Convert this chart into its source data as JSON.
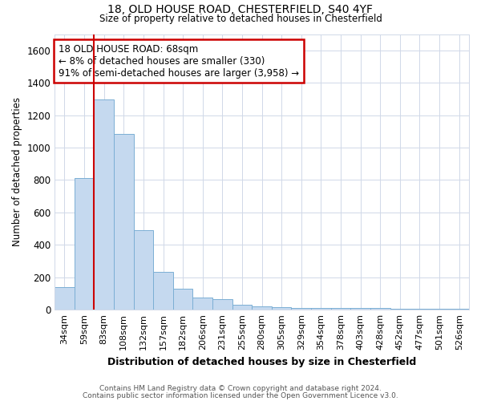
{
  "title1": "18, OLD HOUSE ROAD, CHESTERFIELD, S40 4YF",
  "title2": "Size of property relative to detached houses in Chesterfield",
  "xlabel": "Distribution of detached houses by size in Chesterfield",
  "ylabel": "Number of detached properties",
  "bin_labels": [
    "34sqm",
    "59sqm",
    "83sqm",
    "108sqm",
    "132sqm",
    "157sqm",
    "182sqm",
    "206sqm",
    "231sqm",
    "255sqm",
    "280sqm",
    "305sqm",
    "329sqm",
    "354sqm",
    "378sqm",
    "403sqm",
    "428sqm",
    "452sqm",
    "477sqm",
    "501sqm",
    "526sqm"
  ],
  "bar_heights": [
    140,
    810,
    1295,
    1085,
    490,
    235,
    130,
    75,
    65,
    30,
    20,
    15,
    10,
    10,
    10,
    10,
    10,
    5,
    5,
    5,
    5
  ],
  "bar_color": "#c5d9ef",
  "bar_edge_color": "#7bafd4",
  "red_line_x": 1.5,
  "annotation_line1": "18 OLD HOUSE ROAD: 68sqm",
  "annotation_line2": "← 8% of detached houses are smaller (330)",
  "annotation_line3": "91% of semi-detached houses are larger (3,958) →",
  "annotation_box_color": "#ffffff",
  "annotation_box_edge": "#cc0000",
  "ylim": [
    0,
    1700
  ],
  "yticks": [
    0,
    200,
    400,
    600,
    800,
    1000,
    1200,
    1400,
    1600
  ],
  "footer1": "Contains HM Land Registry data © Crown copyright and database right 2024.",
  "footer2": "Contains public sector information licensed under the Open Government Licence v3.0.",
  "bg_color": "#ffffff",
  "plot_bg_color": "#ffffff",
  "grid_color": "#d0d8e8"
}
